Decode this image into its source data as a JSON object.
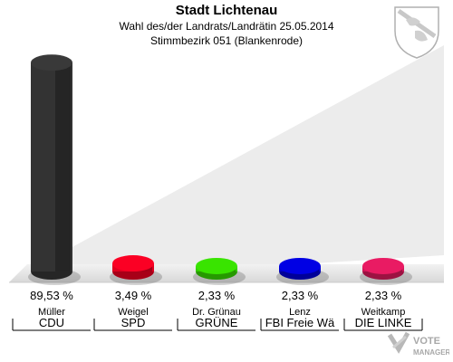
{
  "header": {
    "title": "Stadt Lichtenau",
    "subtitle": "Wahl des/der Landrats/Landrätin 25.05.2014",
    "district": "Stimmbezirk 051 (Blankenrode)"
  },
  "chart_data": {
    "type": "bar",
    "categories": [
      "Müller",
      "Weigel",
      "Dr. Grünau",
      "Lenz",
      "Weitkamp"
    ],
    "parties": [
      "CDU",
      "SPD",
      "GRÜNE",
      "FBI Freie Wä",
      "DIE LINKE"
    ],
    "values": [
      89.53,
      3.49,
      2.33,
      2.33,
      2.33
    ],
    "value_labels": [
      "89,53 %",
      "3,49 %",
      "2,33 %",
      "2,33 %",
      "2,33 %"
    ],
    "colors": [
      "#333333",
      "#e00020",
      "#33cc00",
      "#0000cc",
      "#d01858"
    ],
    "ylim": [
      0,
      100
    ]
  },
  "branding": {
    "logo_line1": "VOTE",
    "logo_line2": "MANAGER"
  },
  "icons": {
    "crest": "coat-of-arms-icon",
    "logo": "vote-manager-logo-icon"
  }
}
